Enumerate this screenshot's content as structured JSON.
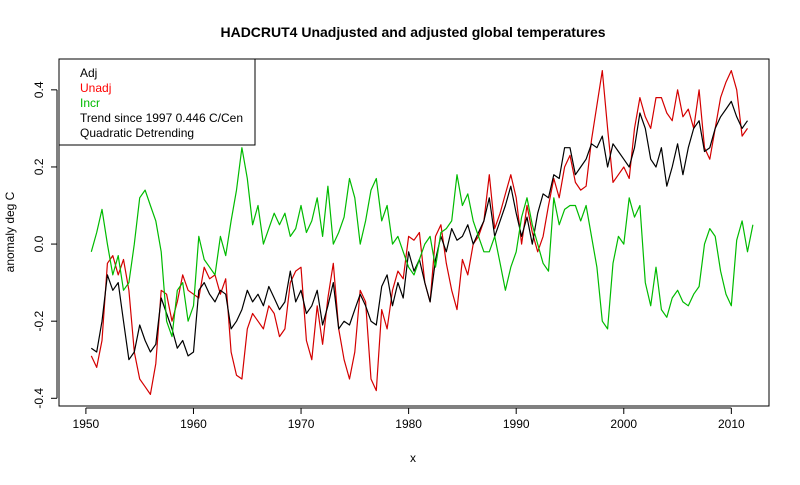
{
  "chart_data": {
    "type": "line",
    "title": "HADCRUT4 Unadjusted and adjusted global temperatures",
    "xlabel": "x",
    "ylabel": "anomaly deg C",
    "xlim": [
      1947.5,
      2013.5
    ],
    "ylim": [
      -0.42,
      0.48
    ],
    "xticks": [
      1950,
      1960,
      1970,
      1980,
      1990,
      2000,
      2010
    ],
    "yticks": [
      -0.4,
      -0.2,
      0.0,
      0.2,
      0.4
    ],
    "ytick_labels": [
      "-0.4",
      "-0.2",
      "0.0",
      "0.2",
      "0.4"
    ],
    "grid": false,
    "legend_position": "top-left",
    "legend": [
      {
        "label": "Adj",
        "color": "#000000"
      },
      {
        "label": "Unadj",
        "color": "#ff0000"
      },
      {
        "label": "Incr",
        "color": "#00bb00"
      },
      {
        "label": "Trend since 1997 0.446 C/Cen",
        "color": "#000000"
      },
      {
        "label": "Quadratic Detrending",
        "color": "#000000"
      }
    ],
    "series": [
      {
        "name": "Unadj",
        "color": "#d40000",
        "x": [
          1950.5,
          1951.0,
          1951.5,
          1952.0,
          1952.5,
          1953.0,
          1953.5,
          1954.0,
          1954.5,
          1955.0,
          1955.5,
          1956.0,
          1956.5,
          1957.0,
          1957.5,
          1958.0,
          1958.5,
          1959.0,
          1959.5,
          1960.0,
          1960.5,
          1961.0,
          1961.5,
          1962.0,
          1962.5,
          1963.0,
          1963.5,
          1964.0,
          1964.5,
          1965.0,
          1965.5,
          1966.0,
          1966.5,
          1967.0,
          1967.5,
          1968.0,
          1968.5,
          1969.0,
          1969.5,
          1970.0,
          1970.5,
          1971.0,
          1971.5,
          1972.0,
          1972.5,
          1973.0,
          1973.5,
          1974.0,
          1974.5,
          1975.0,
          1975.5,
          1976.0,
          1976.5,
          1977.0,
          1977.5,
          1978.0,
          1978.5,
          1979.0,
          1979.5,
          1980.0,
          1980.5,
          1981.0,
          1981.5,
          1982.0,
          1982.5,
          1983.0,
          1983.5,
          1984.0,
          1984.5,
          1985.0,
          1985.5,
          1986.0,
          1986.5,
          1987.0,
          1987.5,
          1988.0,
          1988.5,
          1989.0,
          1989.5,
          1990.0,
          1990.5,
          1991.0,
          1991.5,
          1992.0,
          1992.5,
          1993.0,
          1993.5,
          1994.0,
          1994.5,
          1995.0,
          1995.5,
          1996.0,
          1996.5,
          1997.0,
          1997.5,
          1998.0,
          1998.5,
          1999.0,
          1999.5,
          2000.0,
          2000.5,
          2001.0,
          2001.5,
          2002.0,
          2002.5,
          2003.0,
          2003.5,
          2004.0,
          2004.5,
          2005.0,
          2005.5,
          2006.0,
          2006.5,
          2007.0,
          2007.5,
          2008.0,
          2008.5,
          2009.0,
          2009.5,
          2010.0,
          2010.5,
          2011.0,
          2011.5
        ],
        "values": [
          -0.29,
          -0.32,
          -0.25,
          -0.05,
          -0.03,
          -0.08,
          -0.04,
          -0.12,
          -0.28,
          -0.35,
          -0.37,
          -0.39,
          -0.31,
          -0.12,
          -0.13,
          -0.2,
          -0.15,
          -0.08,
          -0.12,
          -0.13,
          -0.14,
          -0.06,
          -0.09,
          -0.08,
          -0.13,
          -0.09,
          -0.28,
          -0.34,
          -0.35,
          -0.22,
          -0.18,
          -0.2,
          -0.22,
          -0.16,
          -0.18,
          -0.24,
          -0.22,
          -0.1,
          -0.07,
          -0.06,
          -0.25,
          -0.3,
          -0.16,
          -0.26,
          -0.14,
          -0.05,
          -0.22,
          -0.3,
          -0.35,
          -0.28,
          -0.12,
          -0.15,
          -0.35,
          -0.38,
          -0.17,
          -0.22,
          -0.12,
          -0.07,
          -0.09,
          0.02,
          0.01,
          0.03,
          -0.1,
          -0.15,
          0.02,
          0.05,
          -0.05,
          -0.12,
          -0.17,
          -0.04,
          -0.08,
          0.0,
          0.02,
          0.06,
          0.18,
          0.04,
          0.08,
          0.13,
          0.18,
          0.12,
          0.0,
          0.1,
          0.03,
          -0.02,
          0.02,
          0.1,
          0.17,
          0.12,
          0.2,
          0.23,
          0.16,
          0.14,
          0.15,
          0.27,
          0.36,
          0.45,
          0.3,
          0.16,
          0.18,
          0.2,
          0.17,
          0.3,
          0.38,
          0.33,
          0.3,
          0.38,
          0.38,
          0.34,
          0.32,
          0.4,
          0.33,
          0.35,
          0.3,
          0.4,
          0.25,
          0.22,
          0.3,
          0.38,
          0.42,
          0.45,
          0.4,
          0.28,
          0.3
        ]
      },
      {
        "name": "Adj",
        "color": "#000000",
        "x": [
          1950.5,
          1951.0,
          1951.5,
          1952.0,
          1952.5,
          1953.0,
          1953.5,
          1954.0,
          1954.5,
          1955.0,
          1955.5,
          1956.0,
          1956.5,
          1957.0,
          1957.5,
          1958.0,
          1958.5,
          1959.0,
          1959.5,
          1960.0,
          1960.5,
          1961.0,
          1961.5,
          1962.0,
          1962.5,
          1963.0,
          1963.5,
          1964.0,
          1964.5,
          1965.0,
          1965.5,
          1966.0,
          1966.5,
          1967.0,
          1967.5,
          1968.0,
          1968.5,
          1969.0,
          1969.5,
          1970.0,
          1970.5,
          1971.0,
          1971.5,
          1972.0,
          1972.5,
          1973.0,
          1973.5,
          1974.0,
          1974.5,
          1975.0,
          1975.5,
          1976.0,
          1976.5,
          1977.0,
          1977.5,
          1978.0,
          1978.5,
          1979.0,
          1979.5,
          1980.0,
          1980.5,
          1981.0,
          1981.5,
          1982.0,
          1982.5,
          1983.0,
          1983.5,
          1984.0,
          1984.5,
          1985.0,
          1985.5,
          1986.0,
          1986.5,
          1987.0,
          1987.5,
          1988.0,
          1988.5,
          1989.0,
          1989.5,
          1990.0,
          1990.5,
          1991.0,
          1991.5,
          1992.0,
          1992.5,
          1993.0,
          1993.5,
          1994.0,
          1994.5,
          1995.0,
          1995.5,
          1996.0,
          1996.5,
          1997.0,
          1997.5,
          1998.0,
          1998.5,
          1999.0,
          1999.5,
          2000.0,
          2000.5,
          2001.0,
          2001.5,
          2002.0,
          2002.5,
          2003.0,
          2003.5,
          2004.0,
          2004.5,
          2005.0,
          2005.5,
          2006.0,
          2006.5,
          2007.0,
          2007.5,
          2008.0,
          2008.5,
          2009.0,
          2009.5,
          2010.0,
          2010.5,
          2011.0,
          2011.5
        ],
        "values": [
          -0.27,
          -0.28,
          -0.2,
          -0.08,
          -0.12,
          -0.1,
          -0.2,
          -0.3,
          -0.28,
          -0.21,
          -0.25,
          -0.28,
          -0.26,
          -0.14,
          -0.18,
          -0.22,
          -0.27,
          -0.25,
          -0.29,
          -0.28,
          -0.12,
          -0.1,
          -0.13,
          -0.15,
          -0.12,
          -0.13,
          -0.22,
          -0.2,
          -0.17,
          -0.12,
          -0.15,
          -0.13,
          -0.16,
          -0.11,
          -0.14,
          -0.17,
          -0.15,
          -0.07,
          -0.15,
          -0.12,
          -0.18,
          -0.16,
          -0.12,
          -0.21,
          -0.16,
          -0.1,
          -0.22,
          -0.2,
          -0.21,
          -0.17,
          -0.13,
          -0.16,
          -0.2,
          -0.21,
          -0.11,
          -0.08,
          -0.16,
          -0.1,
          -0.14,
          -0.02,
          -0.07,
          -0.04,
          -0.1,
          -0.15,
          -0.04,
          0.02,
          -0.02,
          0.04,
          0.01,
          0.02,
          0.05,
          0.0,
          0.03,
          0.06,
          0.12,
          0.02,
          0.06,
          0.1,
          0.15,
          0.08,
          0.02,
          0.07,
          0.0,
          0.08,
          0.13,
          0.12,
          0.18,
          0.17,
          0.25,
          0.25,
          0.18,
          0.2,
          0.22,
          0.26,
          0.25,
          0.28,
          0.2,
          0.26,
          0.24,
          0.22,
          0.2,
          0.25,
          0.34,
          0.3,
          0.22,
          0.2,
          0.25,
          0.15,
          0.2,
          0.26,
          0.18,
          0.25,
          0.3,
          0.32,
          0.24,
          0.25,
          0.3,
          0.33,
          0.35,
          0.37,
          0.33,
          0.3,
          0.32
        ]
      },
      {
        "name": "Incr",
        "color": "#00bb00",
        "x": [
          1950.5,
          1951.0,
          1951.5,
          1952.0,
          1952.5,
          1953.0,
          1953.5,
          1954.0,
          1954.5,
          1955.0,
          1955.5,
          1956.0,
          1956.5,
          1957.0,
          1957.5,
          1958.0,
          1958.5,
          1959.0,
          1959.5,
          1960.0,
          1960.5,
          1961.0,
          1961.5,
          1962.0,
          1962.5,
          1963.0,
          1963.5,
          1964.0,
          1964.5,
          1965.0,
          1965.5,
          1966.0,
          1966.5,
          1967.0,
          1967.5,
          1968.0,
          1968.5,
          1969.0,
          1969.5,
          1970.0,
          1970.5,
          1971.0,
          1971.5,
          1972.0,
          1972.5,
          1973.0,
          1973.5,
          1974.0,
          1974.5,
          1975.0,
          1975.5,
          1976.0,
          1976.5,
          1977.0,
          1977.5,
          1978.0,
          1978.5,
          1979.0,
          1979.5,
          1980.0,
          1980.5,
          1981.0,
          1981.5,
          1982.0,
          1982.5,
          1983.0,
          1983.5,
          1984.0,
          1984.5,
          1985.0,
          1985.5,
          1986.0,
          1986.5,
          1987.0,
          1987.5,
          1988.0,
          1988.5,
          1989.0,
          1989.5,
          1990.0,
          1990.5,
          1991.0,
          1991.5,
          1992.0,
          1992.5,
          1993.0,
          1993.5,
          1994.0,
          1994.5,
          1995.0,
          1995.5,
          1996.0,
          1996.5,
          1997.0,
          1997.5,
          1998.0,
          1998.5,
          1999.0,
          1999.5,
          2000.0,
          2000.5,
          2001.0,
          2001.5,
          2002.0,
          2002.5,
          2003.0,
          2003.5,
          2004.0,
          2004.5,
          2005.0,
          2005.5,
          2006.0,
          2006.5,
          2007.0,
          2007.5,
          2008.0,
          2008.5,
          2009.0,
          2009.5,
          2010.0,
          2010.5,
          2011.0,
          2011.5,
          2012.0
        ],
        "values": [
          -0.02,
          0.03,
          0.09,
          0.0,
          -0.08,
          -0.03,
          -0.12,
          -0.1,
          0.0,
          0.12,
          0.14,
          0.1,
          0.06,
          -0.02,
          -0.2,
          -0.24,
          -0.12,
          -0.1,
          -0.2,
          -0.16,
          0.02,
          -0.04,
          -0.06,
          -0.08,
          0.02,
          -0.03,
          0.06,
          0.14,
          0.25,
          0.17,
          0.05,
          0.1,
          0.0,
          0.04,
          0.08,
          0.05,
          0.08,
          0.02,
          0.04,
          0.1,
          0.03,
          0.06,
          0.12,
          0.02,
          0.15,
          0.0,
          0.03,
          0.07,
          0.17,
          0.12,
          0.0,
          0.06,
          0.14,
          0.17,
          0.06,
          0.1,
          0.0,
          0.02,
          -0.02,
          -0.06,
          -0.08,
          -0.04,
          0.0,
          0.02,
          -0.06,
          0.03,
          0.04,
          0.06,
          0.18,
          0.1,
          0.13,
          0.06,
          0.02,
          -0.02,
          -0.02,
          0.02,
          -0.05,
          -0.12,
          -0.06,
          -0.02,
          0.07,
          0.12,
          0.05,
          0.0,
          -0.05,
          -0.07,
          0.12,
          0.05,
          0.09,
          0.1,
          0.1,
          0.06,
          0.1,
          0.02,
          -0.06,
          -0.2,
          -0.22,
          -0.05,
          0.02,
          0.0,
          0.12,
          0.07,
          0.1,
          -0.1,
          -0.16,
          -0.06,
          -0.17,
          -0.19,
          -0.14,
          -0.12,
          -0.15,
          -0.16,
          -0.13,
          -0.11,
          0.0,
          0.04,
          0.02,
          -0.07,
          -0.13,
          -0.16,
          0.01,
          0.06,
          -0.02,
          0.05
        ]
      }
    ]
  }
}
